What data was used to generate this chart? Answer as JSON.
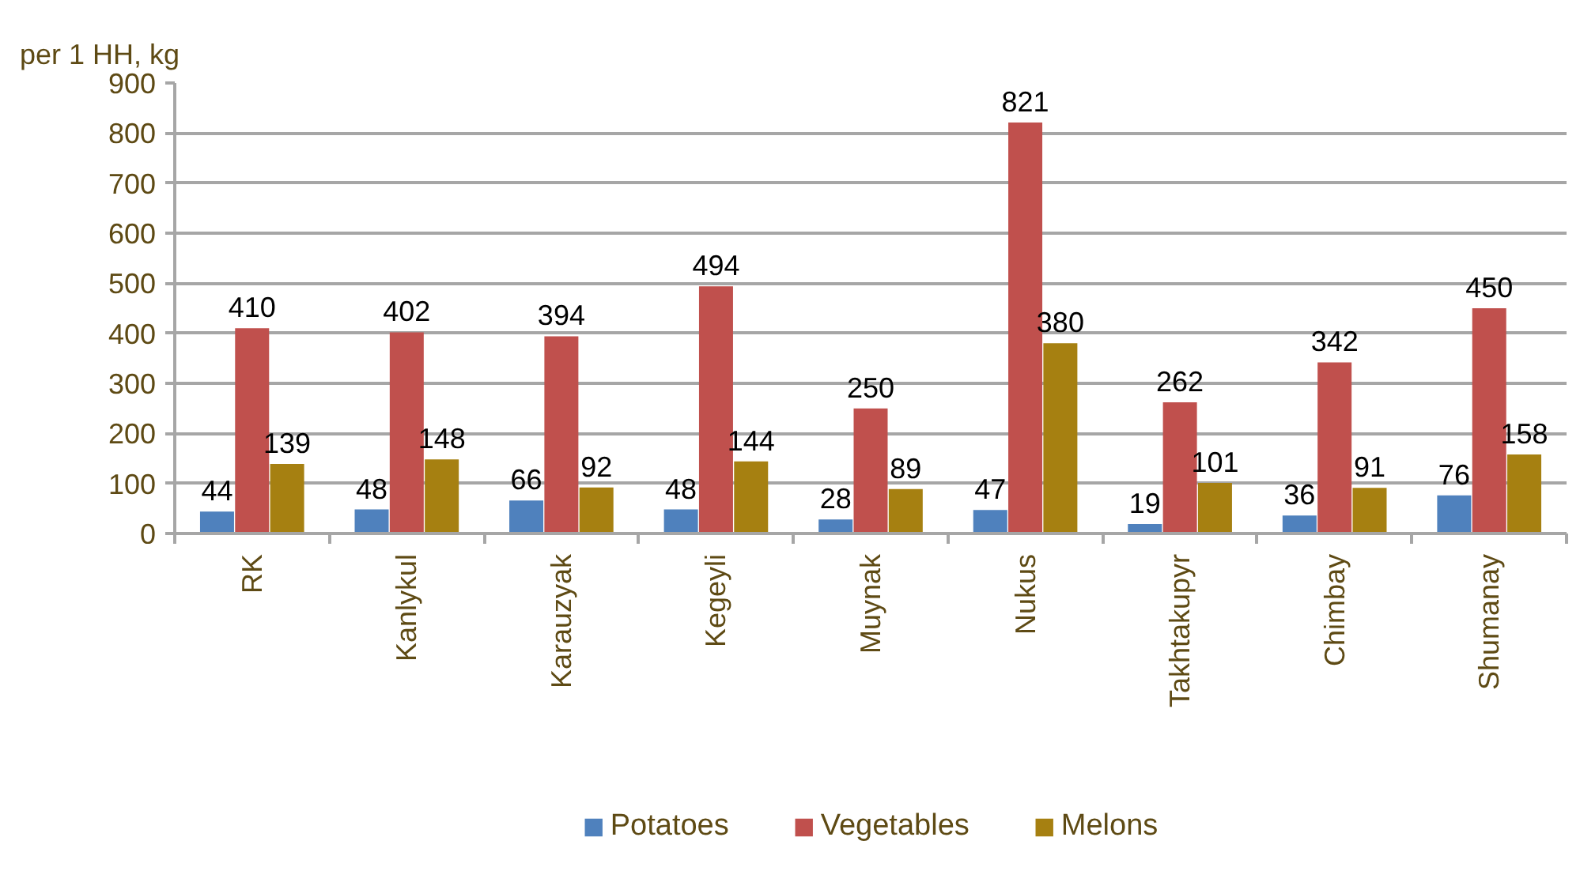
{
  "chart_data": {
    "type": "bar",
    "ylabel": "per 1 HH, kg",
    "categories": [
      "RK",
      "Kanlykul",
      "Karauzyak",
      "Kegeyli",
      "Muynak",
      "Nukus",
      "Takhtakupyr",
      "Chimbay",
      "Shumanay"
    ],
    "series": [
      {
        "name": "Potatoes",
        "color": "#4f81bd",
        "values": [
          44,
          48,
          66,
          48,
          28,
          47,
          19,
          36,
          76
        ]
      },
      {
        "name": "Vegetables",
        "color": "#c0504d",
        "values": [
          410,
          402,
          394,
          494,
          250,
          821,
          262,
          342,
          450
        ]
      },
      {
        "name": "Melons",
        "color": "#a68011",
        "values": [
          139,
          148,
          92,
          144,
          89,
          380,
          101,
          91,
          158
        ]
      }
    ],
    "ylim": [
      0,
      900
    ],
    "yticks": [
      0,
      100,
      200,
      300,
      400,
      500,
      600,
      700,
      800,
      900
    ],
    "grid": "y",
    "legend": "bottom",
    "data_labels": true
  }
}
